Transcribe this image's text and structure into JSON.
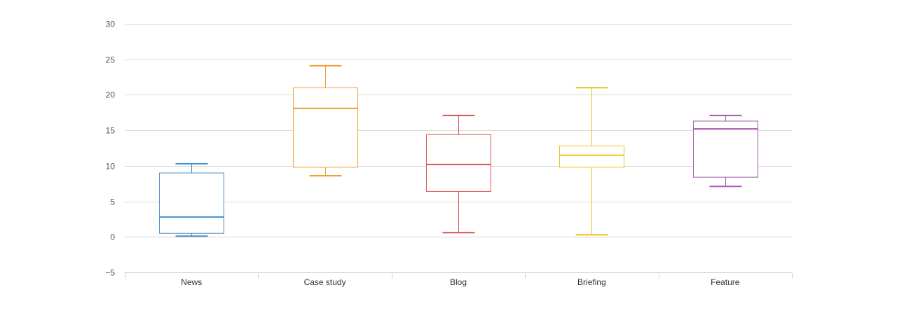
{
  "chart_data": {
    "type": "boxplot",
    "title": "",
    "xlabel": "",
    "ylabel": "",
    "ylim": [
      -5,
      30
    ],
    "yticks": [
      -5,
      0,
      5,
      10,
      15,
      20,
      25,
      30
    ],
    "yticks_labels": [
      "−5",
      "0",
      "5",
      "10",
      "15",
      "20",
      "25",
      "30"
    ],
    "grid": true,
    "legend": "none",
    "categories": [
      "News",
      "Case study",
      "Blog",
      "Briefing",
      "Feature"
    ],
    "series": [
      {
        "low": 0.1,
        "q1": 0.5,
        "median": 2.8,
        "q3": 9.0,
        "high": 10.3,
        "color": "#4a90c8"
      },
      {
        "low": 8.6,
        "q1": 9.8,
        "median": 18.1,
        "q3": 21.0,
        "high": 24.1,
        "color": "#f0a030"
      },
      {
        "low": 0.6,
        "q1": 6.4,
        "median": 10.2,
        "q3": 14.4,
        "high": 17.1,
        "color": "#d9534f"
      },
      {
        "low": 0.3,
        "q1": 9.8,
        "median": 11.5,
        "q3": 12.8,
        "high": 21.0,
        "color": "#e6c619"
      },
      {
        "low": 7.1,
        "q1": 8.4,
        "median": 15.2,
        "q3": 16.3,
        "high": 17.1,
        "color": "#a25aab"
      }
    ]
  }
}
